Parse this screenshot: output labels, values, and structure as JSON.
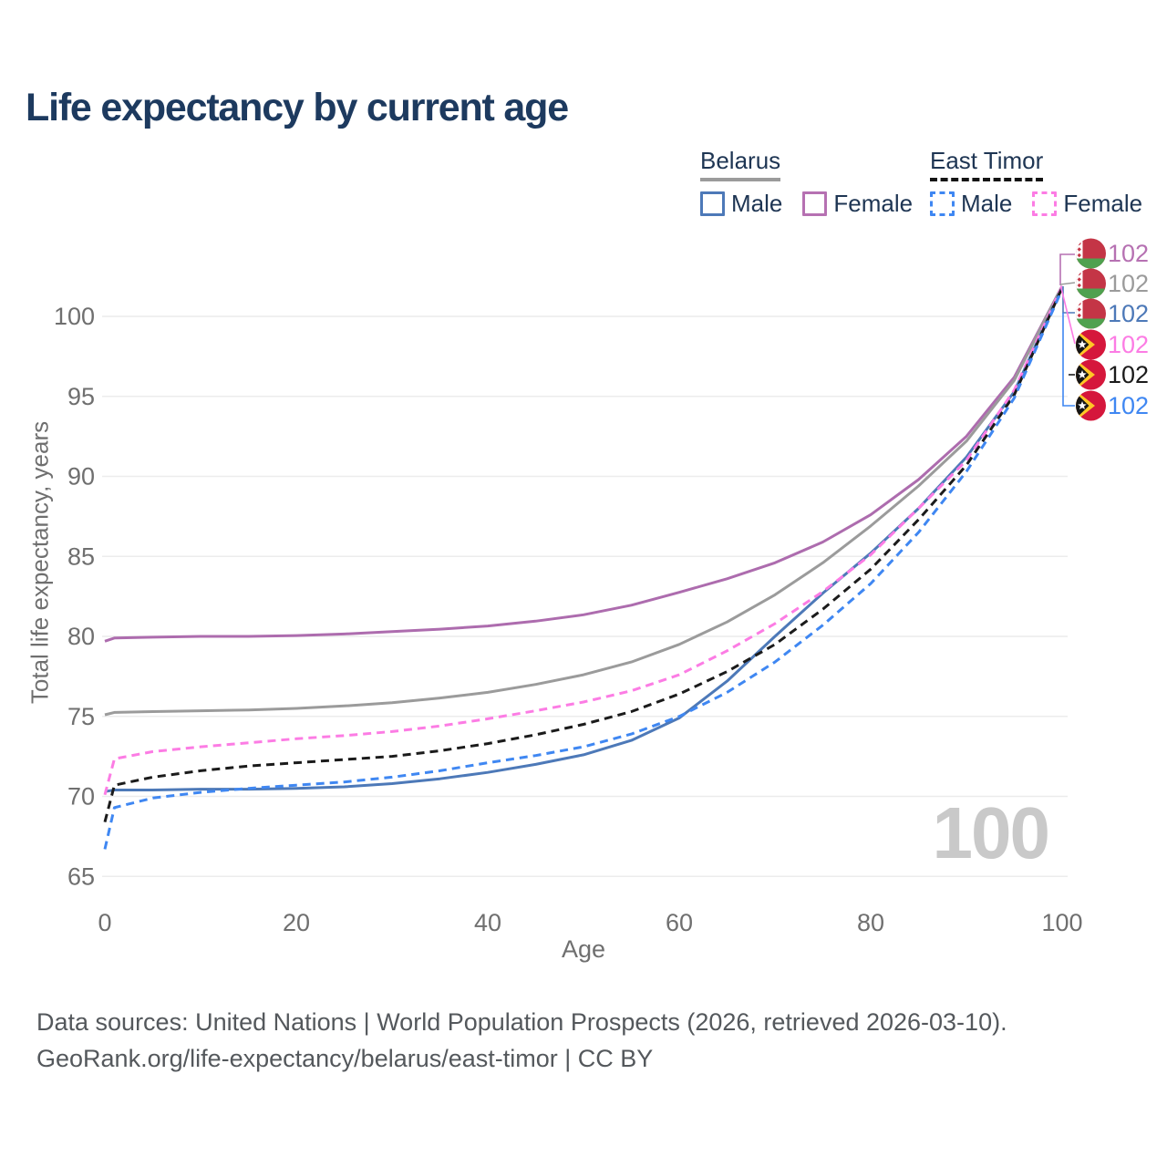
{
  "header": {
    "title": "Life expectancy by current age"
  },
  "legend": {
    "groups": [
      {
        "id": "belarus",
        "label": "Belarus",
        "line_style": "solid",
        "underline_color": "#9b9b9b",
        "items": [
          {
            "id": "belarus-male",
            "label": "Male",
            "color": "#4d79b8",
            "dash": false
          },
          {
            "id": "belarus-female",
            "label": "Female",
            "color": "#b671b2",
            "dash": false
          }
        ]
      },
      {
        "id": "east-timor",
        "label": "East Timor",
        "line_style": "dashed",
        "underline_color": "#141414",
        "items": [
          {
            "id": "east-timor-male",
            "label": "Male",
            "color": "#3f87f2",
            "dash": true
          },
          {
            "id": "east-timor-female",
            "label": "Female",
            "color": "#fc7ce4",
            "dash": true
          }
        ]
      }
    ]
  },
  "chart_data": {
    "type": "line",
    "title": "Life expectancy by current age",
    "xlabel": "Age",
    "ylabel": "Total life expectancy, years",
    "xlim": [
      0,
      100
    ],
    "ylim": [
      65,
      103
    ],
    "x_ticks": [
      0,
      20,
      40,
      60,
      80,
      100
    ],
    "y_ticks": [
      65,
      70,
      75,
      80,
      85,
      90,
      95,
      100
    ],
    "grid": true,
    "legend_position": "top-right",
    "x": [
      0,
      1,
      5,
      10,
      15,
      20,
      25,
      30,
      35,
      40,
      45,
      50,
      55,
      60,
      65,
      70,
      75,
      80,
      85,
      90,
      95,
      100
    ],
    "series": [
      {
        "name": "Belarus — Female",
        "country": "Belarus",
        "sex": "Female",
        "color": "#ad6cae",
        "dash": false,
        "values": [
          79.7,
          79.9,
          79.95,
          80.0,
          80.0,
          80.05,
          80.15,
          80.3,
          80.45,
          80.65,
          80.95,
          81.35,
          81.95,
          82.75,
          83.6,
          84.6,
          85.9,
          87.6,
          89.8,
          92.5,
          96.2,
          101.9
        ]
      },
      {
        "name": "Belarus — Total",
        "country": "Belarus",
        "sex": "Both",
        "color": "#9b9b9b",
        "dash": false,
        "values": [
          75.1,
          75.25,
          75.3,
          75.35,
          75.4,
          75.5,
          75.65,
          75.85,
          76.15,
          76.5,
          77.0,
          77.6,
          78.4,
          79.5,
          80.9,
          82.6,
          84.6,
          86.9,
          89.4,
          92.2,
          96.0,
          101.9
        ]
      },
      {
        "name": "Belarus — Male",
        "country": "Belarus",
        "sex": "Male",
        "color": "#4d79b8",
        "dash": false,
        "values": [
          70.3,
          70.4,
          70.4,
          70.45,
          70.45,
          70.5,
          70.6,
          70.8,
          71.1,
          71.5,
          72.0,
          72.6,
          73.5,
          74.9,
          77.2,
          80.0,
          82.7,
          85.2,
          88.0,
          91.2,
          95.3,
          101.8
        ]
      },
      {
        "name": "East Timor — Female",
        "country": "East Timor",
        "sex": "Female",
        "color": "#fc7ce4",
        "dash": true,
        "values": [
          70.1,
          72.35,
          72.8,
          73.1,
          73.35,
          73.6,
          73.8,
          74.05,
          74.4,
          74.85,
          75.35,
          75.9,
          76.6,
          77.6,
          79.1,
          80.8,
          82.8,
          85.1,
          88.0,
          91.0,
          95.4,
          101.9
        ]
      },
      {
        "name": "East Timor — Total",
        "country": "East Timor",
        "sex": "Both",
        "color": "#1b1b1b",
        "dash": true,
        "values": [
          68.4,
          70.7,
          71.2,
          71.6,
          71.9,
          72.1,
          72.3,
          72.5,
          72.85,
          73.3,
          73.85,
          74.5,
          75.3,
          76.4,
          77.8,
          79.5,
          81.7,
          84.2,
          87.3,
          90.7,
          95.1,
          101.8
        ]
      },
      {
        "name": "East Timor — Male",
        "country": "East Timor",
        "sex": "Male",
        "color": "#3f87f2",
        "dash": true,
        "values": [
          66.7,
          69.3,
          69.9,
          70.25,
          70.5,
          70.7,
          70.9,
          71.2,
          71.6,
          72.1,
          72.55,
          73.1,
          73.9,
          75.0,
          76.5,
          78.4,
          80.7,
          83.3,
          86.5,
          90.3,
          94.9,
          101.7
        ]
      }
    ]
  },
  "end_labels": [
    {
      "flag": "belarus-flag-icon",
      "value": "102",
      "color": "#b671b2"
    },
    {
      "flag": "belarus-flag-icon",
      "value": "102",
      "color": "#9b9b9b"
    },
    {
      "flag": "belarus-flag-icon",
      "value": "102",
      "color": "#4d79b8"
    },
    {
      "flag": "east-timor-flag-icon",
      "value": "102",
      "color": "#fc7ce4"
    },
    {
      "flag": "east-timor-flag-icon",
      "value": "102",
      "color": "#1b1b1b"
    },
    {
      "flag": "east-timor-flag-icon",
      "value": "102",
      "color": "#3f87f2"
    }
  ],
  "flag_colors": {
    "belarus": {
      "red": "#c43546",
      "green": "#4fa14f",
      "white": "#ffffff",
      "ornament": "#c43546"
    },
    "east_timor": {
      "red": "#d5173c",
      "black": "#151515",
      "yellow": "#ffc726",
      "star": "#ffffff"
    }
  },
  "watermark": "100",
  "footer": {
    "line1": "Data sources: United Nations | World Population Prospects (2026, retrieved 2026-03-10).",
    "line2": "GeoRank.org/life-expectancy/belarus/east-timor | CC BY"
  }
}
